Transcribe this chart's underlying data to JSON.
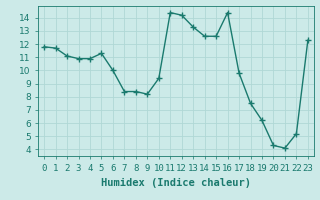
{
  "x": [
    0,
    1,
    2,
    3,
    4,
    5,
    6,
    7,
    8,
    9,
    10,
    11,
    12,
    13,
    14,
    15,
    16,
    17,
    18,
    19,
    20,
    21,
    22,
    23
  ],
  "y": [
    11.8,
    11.7,
    11.1,
    10.9,
    10.9,
    11.3,
    10.0,
    8.4,
    8.4,
    8.2,
    9.4,
    14.4,
    14.2,
    13.3,
    12.6,
    12.6,
    14.4,
    9.8,
    7.5,
    6.2,
    4.3,
    4.1,
    5.2,
    12.3
  ],
  "line_color": "#1a7a6e",
  "marker": "+",
  "marker_size": 4,
  "line_width": 1.0,
  "bg_color": "#cceae8",
  "grid_color": "#b0d8d5",
  "xlabel": "Humidex (Indice chaleur)",
  "xlabel_fontsize": 7.5,
  "tick_fontsize": 6.5,
  "xlim": [
    -0.5,
    23.5
  ],
  "ylim": [
    3.5,
    14.9
  ],
  "yticks": [
    4,
    5,
    6,
    7,
    8,
    9,
    10,
    11,
    12,
    13,
    14
  ],
  "xtick_labels": [
    "0",
    "1",
    "2",
    "3",
    "4",
    "5",
    "6",
    "7",
    "8",
    "9",
    "10",
    "11",
    "12",
    "13",
    "14",
    "15",
    "16",
    "17",
    "18",
    "19",
    "20",
    "21",
    "22",
    "23"
  ]
}
